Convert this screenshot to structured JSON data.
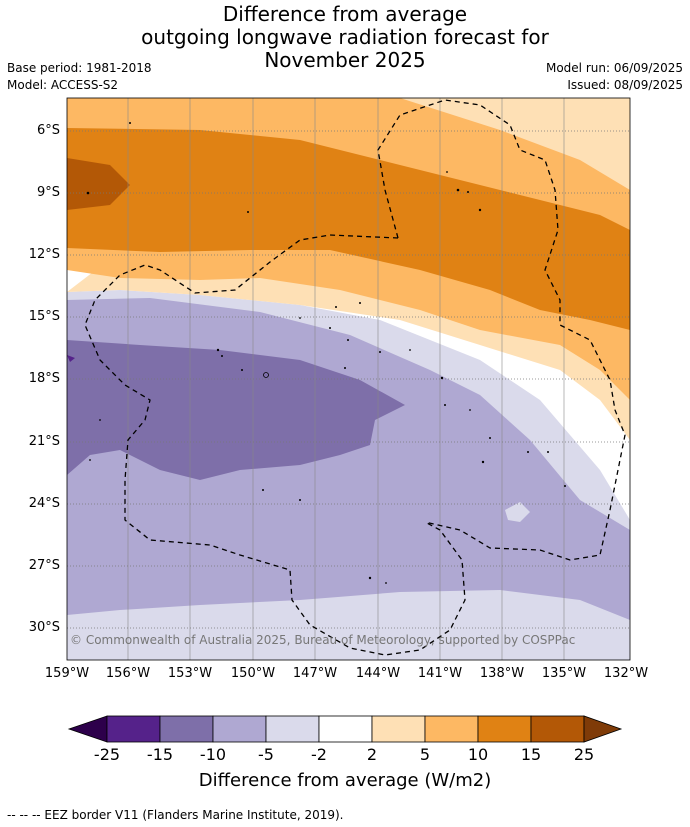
{
  "title": {
    "line1": "Difference from average",
    "line2": "outgoing longwave radiation forecast for",
    "line3": "November 2025"
  },
  "meta": {
    "base_period": "Base period: 1981-2018",
    "model": "Model: ACCESS-S2",
    "model_run": "Model run: 06/09/2025",
    "issued": "Issued: 08/09/2025"
  },
  "axes": {
    "lat_labels": [
      "6°S",
      "9°S",
      "12°S",
      "15°S",
      "18°S",
      "21°S",
      "24°S",
      "27°S",
      "30°S"
    ],
    "lon_labels": [
      "159°W",
      "156°W",
      "153°W",
      "150°W",
      "147°W",
      "144°W",
      "141°W",
      "138°W",
      "135°W",
      "132°W"
    ]
  },
  "copyright": "© Commonwealth of Australia 2025, Bureau of Meteorology, supported by COSPPac",
  "colorbar": {
    "ticks": [
      "-25",
      "-15",
      "-10",
      "-5",
      "-2",
      "2",
      "5",
      "10",
      "15",
      "25"
    ],
    "colors": [
      "#55228a",
      "#7e6fa9",
      "#afa8d2",
      "#dadaeb",
      "#ffffff",
      "#fee0b5",
      "#fdb863",
      "#e08214",
      "#b35806"
    ],
    "under_color": "#2d004b",
    "over_color": "#7f3b08",
    "title": "Difference from average (W/m2)"
  },
  "footnote": "--  --  -- EEZ border V11 (Flanders Marine Institute, 2019)."
}
